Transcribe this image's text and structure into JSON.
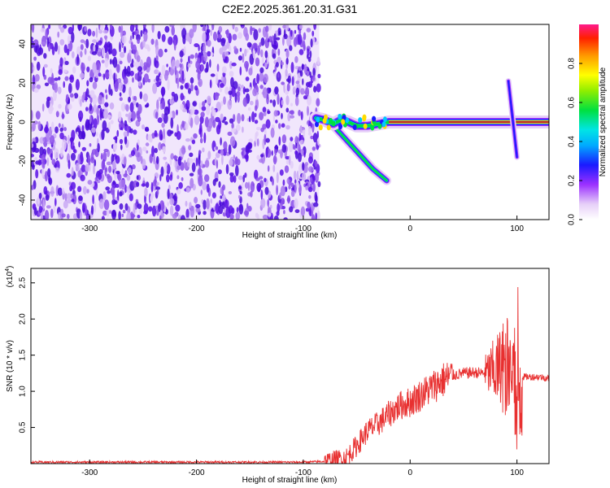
{
  "title": "C2E2.2025.361.20.31.G31",
  "colors": {
    "noise_dark": "#5a10e6",
    "noise_light": "#c9a8f5",
    "snr_line": "#e83030"
  },
  "chart_data": [
    {
      "type": "heatmap",
      "xlabel": "Height of straight line (km)",
      "ylabel": "Frequency (Hz)",
      "xlim": [
        -355,
        130
      ],
      "ylim": [
        -50,
        50
      ],
      "xticks": [
        -300,
        -200,
        -100,
        0,
        100
      ],
      "xtick_labels": [
        "-300",
        "-200",
        "-100",
        "0",
        "100"
      ],
      "yticks": [
        -40,
        -20,
        0,
        20,
        40
      ],
      "ytick_labels": [
        "-40",
        "-20",
        "0",
        "20",
        "40"
      ],
      "noise_region_x": [
        -355,
        -85
      ],
      "signal_track": [
        {
          "x": -88,
          "y": 2
        },
        {
          "x": -80,
          "y": 1
        },
        {
          "x": -72,
          "y": -1
        },
        {
          "x": -65,
          "y": 1
        },
        {
          "x": -58,
          "y": 0
        },
        {
          "x": -50,
          "y": -2
        },
        {
          "x": -40,
          "y": -2
        },
        {
          "x": -30,
          "y": -1
        },
        {
          "x": -20,
          "y": 0
        },
        {
          "x": 0,
          "y": 0
        },
        {
          "x": 40,
          "y": 0
        },
        {
          "x": 80,
          "y": 0
        },
        {
          "x": 130,
          "y": 0
        }
      ],
      "descending_branch": [
        {
          "x": -75,
          "y": 0
        },
        {
          "x": -65,
          "y": -6
        },
        {
          "x": -55,
          "y": -12
        },
        {
          "x": -45,
          "y": -18
        },
        {
          "x": -35,
          "y": -24
        },
        {
          "x": -22,
          "y": -30
        }
      ],
      "vertical_feature": {
        "x": 92,
        "y_range": [
          -18,
          21
        ]
      },
      "grid": false,
      "legend": "right",
      "colorbar": {
        "label": "Normalized spectral amplitude",
        "range": [
          0,
          1
        ],
        "ticks": [
          0.0,
          0.2,
          0.4,
          0.6,
          0.8
        ],
        "tick_labels": [
          "0.0",
          "0.2",
          "0.4",
          "0.6",
          "0.8"
        ]
      }
    },
    {
      "type": "line",
      "xlabel": "Height of straight line (km)",
      "ylabel": "SNR (10 * v/v)",
      "y_multiplier": "(x10",
      "y_multiplier_exp": "4",
      "y_multiplier_close": ")",
      "xlim": [
        -355,
        130
      ],
      "ylim": [
        0,
        2.7
      ],
      "xticks": [
        -300,
        -200,
        -100,
        0,
        100
      ],
      "xtick_labels": [
        "-300",
        "-200",
        "-100",
        "0",
        "100"
      ],
      "yticks": [
        0.5,
        1.0,
        1.5,
        2.0,
        2.5
      ],
      "ytick_labels": [
        "0.5",
        "1.0",
        "1.5",
        "2.0",
        "2.5"
      ],
      "grid": false,
      "series": [
        {
          "x": [
            -355,
            -300,
            -250,
            -200,
            -150,
            -100,
            -80,
            -60,
            -50,
            -40,
            -30,
            -20,
            -10,
            0,
            10,
            20,
            30,
            40,
            50,
            60,
            70,
            80,
            85,
            90,
            95,
            100,
            105,
            110,
            120,
            130
          ],
          "y": [
            0.02,
            0.02,
            0.02,
            0.02,
            0.02,
            0.02,
            0.03,
            0.08,
            0.25,
            0.45,
            0.55,
            0.68,
            0.8,
            0.85,
            0.95,
            1.05,
            1.15,
            1.22,
            1.25,
            1.26,
            1.25,
            1.28,
            1.3,
            1.35,
            1.3,
            1.1,
            1.2,
            1.2,
            1.2,
            1.18
          ]
        }
      ]
    }
  ]
}
